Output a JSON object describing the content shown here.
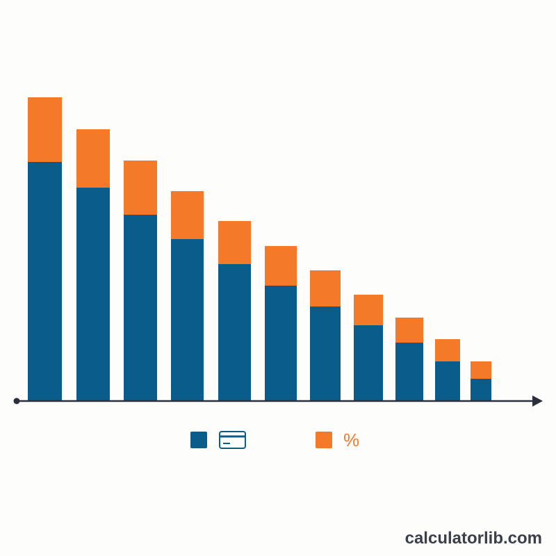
{
  "chart_data": {
    "type": "stacked-bar",
    "categories": [
      null,
      null,
      null,
      null,
      null,
      null,
      null,
      null,
      null,
      null,
      null
    ],
    "series": [
      {
        "color": "#0a5c8a",
        "values": [
          344,
          307,
          268,
          233,
          197,
          166,
          136,
          109,
          84,
          57,
          32
        ]
      },
      {
        "name": "%",
        "color": "#f47a2a",
        "values": [
          93,
          84,
          78,
          69,
          62,
          57,
          52,
          44,
          36,
          32,
          25
        ]
      }
    ],
    "ylim": [
      0,
      450
    ]
  },
  "watermark": "calculatorlib.com"
}
